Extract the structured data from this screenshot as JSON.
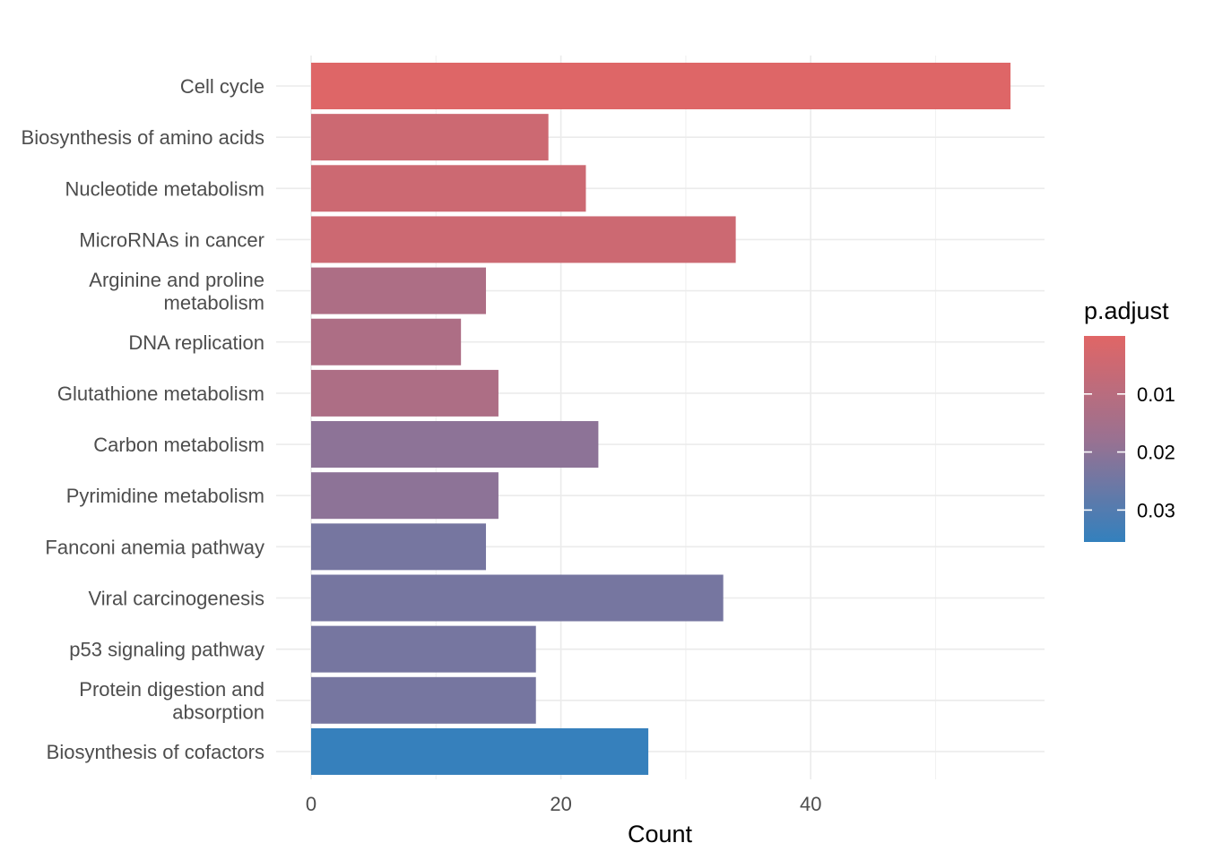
{
  "chart_data": {
    "type": "bar",
    "orientation": "horizontal",
    "categories": [
      "Cell cycle",
      "Biosynthesis of amino acids",
      "Nucleotide metabolism",
      "MicroRNAs in cancer",
      "Arginine and proline\nmetabolism",
      "DNA replication",
      "Glutathione metabolism",
      "Carbon metabolism",
      "Pyrimidine metabolism",
      "Fanconi anemia pathway",
      "Viral carcinogenesis",
      "p53 signaling pathway",
      "Protein digestion and\nabsorption",
      "Biosynthesis of cofactors"
    ],
    "values": [
      56,
      19,
      22,
      34,
      14,
      12,
      15,
      23,
      15,
      14,
      33,
      18,
      18,
      27
    ],
    "p_adjust": [
      0.0005,
      0.005,
      0.005,
      0.005,
      0.013,
      0.013,
      0.013,
      0.02,
      0.02,
      0.024,
      0.024,
      0.024,
      0.024,
      0.035
    ],
    "xlabel": "Count",
    "ylabel": "",
    "xlim": [
      0,
      58.8
    ],
    "x_ticks": [
      0,
      20,
      40
    ],
    "x_ticks_minor": [
      10,
      30,
      50
    ],
    "grid": true,
    "legend": {
      "title": "p.adjust",
      "position": "right",
      "ticks": [
        0.01,
        0.02,
        0.03
      ],
      "tick_labels": [
        "0.01",
        "0.02",
        "0.03"
      ],
      "range": [
        0.0,
        0.0355
      ],
      "color_low": "#e06666",
      "color_high": "#3380bd"
    }
  }
}
